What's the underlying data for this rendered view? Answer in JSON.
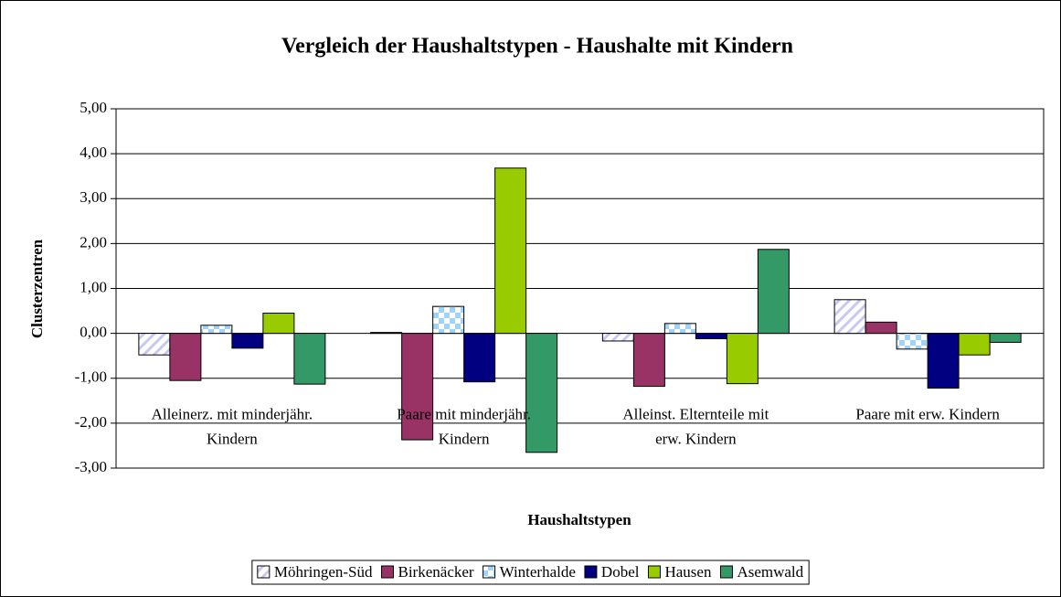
{
  "chart_data": {
    "type": "bar",
    "title": "Vergleich der Haushaltstypen  - Haushalte mit Kindern",
    "x_label": "Haushaltstypen",
    "y_label": "Clusterzentren",
    "categories": [
      "Alleinerz. mit minderjähr. Kindern",
      "Paare mit minderjähr. Kindern",
      "Alleinst. Elternteile mit erw. Kindern",
      "Paare mit erw. Kindern"
    ],
    "series": [
      {
        "name": "Möhringen-Süd",
        "color": "#c8c8f0",
        "values": [
          -0.48,
          0.02,
          -0.17,
          0.75
        ]
      },
      {
        "name": "Birkenäcker",
        "color": "#993366",
        "values": [
          -1.05,
          -2.37,
          -1.18,
          0.25
        ]
      },
      {
        "name": "Winterhalde",
        "color": "#9fd3f7",
        "values": [
          0.18,
          0.6,
          0.22,
          -0.35
        ]
      },
      {
        "name": "Dobel",
        "color": "#000080",
        "values": [
          -0.33,
          -1.08,
          -0.12,
          -1.22
        ]
      },
      {
        "name": "Hausen",
        "color": "#99cc00",
        "values": [
          0.45,
          3.68,
          -1.12,
          -0.48
        ]
      },
      {
        "name": "Asemwald",
        "color": "#339966",
        "values": [
          -1.13,
          -2.65,
          1.87,
          -0.2
        ]
      }
    ],
    "ylim": [
      -3,
      5
    ],
    "yticks": [
      {
        "value": -3,
        "label": "-3,00"
      },
      {
        "value": -2,
        "label": "-2,00"
      },
      {
        "value": -1,
        "label": "-1,00"
      },
      {
        "value": 0,
        "label": "0,00"
      },
      {
        "value": 1,
        "label": "1,00"
      },
      {
        "value": 2,
        "label": "2,00"
      },
      {
        "value": 3,
        "label": "3,00"
      },
      {
        "value": 4,
        "label": "4,00"
      },
      {
        "value": 5,
        "label": "5,00"
      }
    ],
    "grid": true,
    "legend": "bottom"
  }
}
